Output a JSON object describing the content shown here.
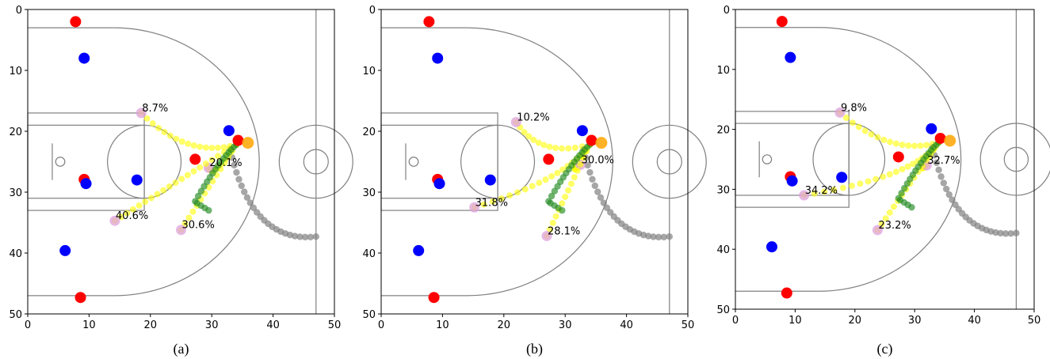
{
  "chart_data": [
    {
      "type": "scatter",
      "caption": "(a)",
      "xlim": [
        0,
        50
      ],
      "ylim": [
        50,
        0
      ],
      "x_ticks": [
        0,
        10,
        20,
        30,
        40,
        50
      ],
      "y_ticks": [
        0,
        10,
        20,
        30,
        40,
        50
      ],
      "grid": false,
      "colors": {
        "offense": "#ff0000",
        "defense": "#0000ff",
        "ball": "#ffa500",
        "ball_path": "#808080",
        "pass_path": "#ffff00",
        "shot_path": "#228b22",
        "target": "#dda0dd"
      },
      "offense_players": [
        [
          7.8,
          2.0
        ],
        [
          27.3,
          24.6
        ],
        [
          9.2,
          27.9
        ],
        [
          8.6,
          47.3
        ],
        [
          34.3,
          21.5
        ]
      ],
      "defense_players": [
        [
          9.2,
          8.0
        ],
        [
          32.8,
          19.9
        ],
        [
          9.5,
          28.6
        ],
        [
          17.8,
          28.0
        ],
        [
          6.1,
          39.6
        ]
      ],
      "ball": [
        35.9,
        21.9
      ],
      "targets": [
        {
          "label": "8.7%",
          "x": 18.5,
          "y": 17.0
        },
        {
          "label": "20.1%",
          "x": 29.5,
          "y": 26.0
        },
        {
          "label": "40.6%",
          "x": 14.2,
          "y": 34.7
        },
        {
          "label": "30.6%",
          "x": 25.0,
          "y": 36.2
        }
      ]
    },
    {
      "type": "scatter",
      "caption": "(b)",
      "xlim": [
        0,
        50
      ],
      "ylim": [
        50,
        0
      ],
      "x_ticks": [
        0,
        10,
        20,
        30,
        40,
        50
      ],
      "y_ticks": [
        0,
        10,
        20,
        30,
        40,
        50
      ],
      "grid": false,
      "colors": {
        "offense": "#ff0000",
        "defense": "#0000ff",
        "ball": "#ffa500",
        "ball_path": "#808080",
        "pass_path": "#ffff00",
        "shot_path": "#228b22",
        "target": "#dda0dd"
      },
      "offense_players": [
        [
          7.8,
          2.0
        ],
        [
          27.3,
          24.6
        ],
        [
          9.2,
          27.9
        ],
        [
          8.6,
          47.3
        ],
        [
          34.3,
          21.5
        ]
      ],
      "defense_players": [
        [
          9.2,
          8.0
        ],
        [
          32.8,
          19.9
        ],
        [
          9.5,
          28.6
        ],
        [
          17.8,
          28.0
        ],
        [
          6.1,
          39.6
        ]
      ],
      "ball": [
        35.9,
        21.9
      ],
      "targets": [
        {
          "label": "10.2%",
          "x": 22.0,
          "y": 18.5
        },
        {
          "label": "30.0%",
          "x": 32.5,
          "y": 25.5
        },
        {
          "label": "31.8%",
          "x": 15.2,
          "y": 32.5
        },
        {
          "label": "28.1%",
          "x": 27.0,
          "y": 37.2
        }
      ]
    },
    {
      "type": "scatter",
      "caption": "(c)",
      "xlim": [
        0,
        50
      ],
      "ylim": [
        50,
        0
      ],
      "x_ticks": [
        0,
        10,
        20,
        30,
        40,
        50
      ],
      "y_ticks": [
        0,
        10,
        20,
        30,
        40,
        50
      ],
      "grid": false,
      "colors": {
        "offense": "#ff0000",
        "defense": "#0000ff",
        "ball": "#ffa500",
        "ball_path": "#808080",
        "pass_path": "#ffff00",
        "shot_path": "#228b22",
        "target": "#dda0dd"
      },
      "offense_players": [
        [
          7.8,
          2.0
        ],
        [
          27.3,
          24.6
        ],
        [
          9.2,
          27.9
        ],
        [
          8.6,
          47.3
        ],
        [
          34.3,
          21.5
        ]
      ],
      "defense_players": [
        [
          9.2,
          8.0
        ],
        [
          32.8,
          19.9
        ],
        [
          9.5,
          28.6
        ],
        [
          17.8,
          28.0
        ],
        [
          6.1,
          39.6
        ]
      ],
      "ball": [
        35.9,
        21.9
      ],
      "targets": [
        {
          "label": "9.8%",
          "x": 17.5,
          "y": 17.2
        },
        {
          "label": "32.7%",
          "x": 32.0,
          "y": 26.0
        },
        {
          "label": "34.2%",
          "x": 11.5,
          "y": 31.0
        },
        {
          "label": "23.2%",
          "x": 23.8,
          "y": 36.8
        }
      ]
    }
  ]
}
